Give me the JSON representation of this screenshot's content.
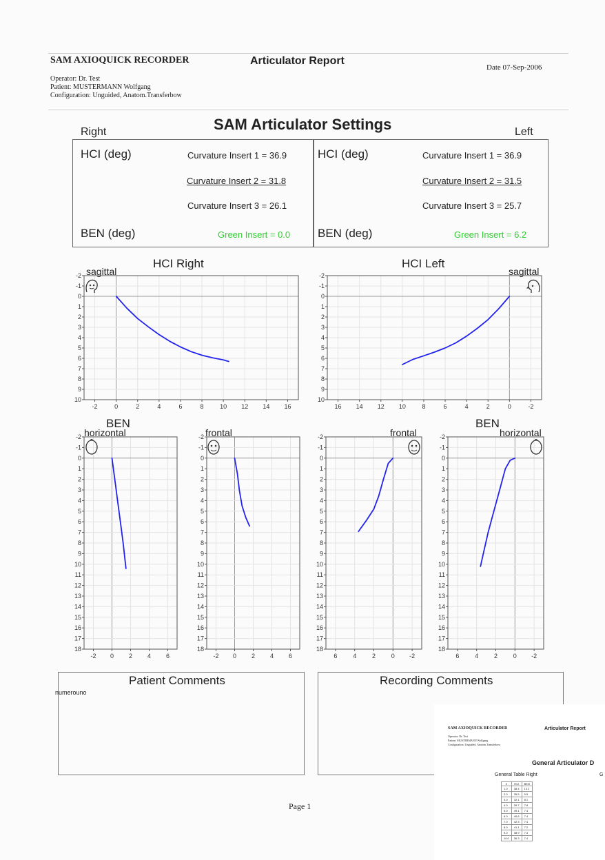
{
  "header": {
    "app_title": "SAM AXIOQUICK RECORDER",
    "report_title": "Articulator Report",
    "date": "Date 07-Sep-2006",
    "operator": "Operator: Dr. Test",
    "patient": "Patient: MUSTERMANN Wolfgang",
    "configuration": "Configuration: Unguided, Anatom.Transferbow"
  },
  "settings": {
    "title": "SAM Articulator Settings",
    "right_label": "Right",
    "left_label": "Left",
    "hci_label": "HCI (deg)",
    "ben_label": "BEN (deg)",
    "right": {
      "ci1": "Curvature Insert 1 = 36.9",
      "ci2": "Curvature Insert 2 = 31.8",
      "ci3": "Curvature Insert 3 = 26.1",
      "green": "Green Insert = 0.0"
    },
    "left": {
      "ci1": "Curvature Insert 1 = 36.9",
      "ci2": "Curvature Insert 2 = 31.5",
      "ci3": "Curvature Insert 3 = 25.7",
      "green": "Green Insert = 6.2"
    },
    "green_color": "#33cc33"
  },
  "chart_data": [
    {
      "id": "hci-right",
      "type": "line",
      "title": "HCI Right",
      "view_label": "sagittal",
      "xlim": [
        -3,
        17
      ],
      "ylim": [
        -2,
        10
      ],
      "x_ticks": [
        -2,
        0,
        2,
        4,
        6,
        8,
        10,
        12,
        14,
        16
      ],
      "y_ticks": [
        -2,
        -1,
        0,
        1,
        2,
        3,
        4,
        5,
        6,
        7,
        8,
        9,
        10
      ],
      "series": [
        {
          "x": [
            0,
            1,
            2,
            3,
            4,
            5,
            6,
            7,
            8,
            9,
            10,
            10.5
          ],
          "y": [
            0,
            1.15,
            2.15,
            2.95,
            3.7,
            4.35,
            4.9,
            5.35,
            5.7,
            5.95,
            6.15,
            6.3
          ],
          "color": "#2222ee"
        }
      ]
    },
    {
      "id": "hci-left",
      "type": "line",
      "title": "HCI Left",
      "view_label": "sagittal",
      "xlim": [
        17,
        -3
      ],
      "ylim": [
        -2,
        10
      ],
      "x_ticks": [
        16,
        14,
        12,
        10,
        8,
        6,
        4,
        2,
        0,
        -2
      ],
      "y_ticks": [
        -2,
        -1,
        0,
        1,
        2,
        3,
        4,
        5,
        6,
        7,
        8,
        9,
        10
      ],
      "series": [
        {
          "x": [
            0,
            1,
            2,
            3,
            4,
            5,
            6,
            7,
            8,
            9,
            10
          ],
          "y": [
            0,
            1.2,
            2.25,
            3.1,
            3.85,
            4.5,
            5.0,
            5.4,
            5.75,
            6.1,
            6.6
          ],
          "color": "#2222ee"
        }
      ]
    },
    {
      "id": "ben-right-horizontal",
      "type": "line",
      "title": "BEN",
      "view_label": "horizontal",
      "xlim": [
        -3,
        7
      ],
      "ylim": [
        -2,
        18
      ],
      "x_ticks": [
        -2,
        0,
        2,
        4,
        6
      ],
      "y_ticks": [
        -2,
        -1,
        0,
        1,
        2,
        3,
        4,
        5,
        6,
        7,
        8,
        9,
        10,
        11,
        12,
        13,
        14,
        15,
        16,
        17,
        18
      ],
      "series": [
        {
          "x": [
            0,
            0.3,
            0.6,
            0.9,
            1.2,
            1.5
          ],
          "y": [
            0,
            2,
            4,
            6,
            8,
            10.4
          ],
          "color": "#2222ee"
        }
      ]
    },
    {
      "id": "frontal-right",
      "type": "line",
      "title": "",
      "view_label": "frontal",
      "xlim": [
        -3,
        7
      ],
      "ylim": [
        -2,
        18
      ],
      "x_ticks": [
        -2,
        0,
        2,
        4,
        6
      ],
      "y_ticks": [
        -2,
        -1,
        0,
        1,
        2,
        3,
        4,
        5,
        6,
        7,
        8,
        9,
        10,
        11,
        12,
        13,
        14,
        15,
        16,
        17,
        18
      ],
      "series": [
        {
          "x": [
            0,
            0.3,
            0.5,
            0.8,
            1.2,
            1.6
          ],
          "y": [
            0,
            1.5,
            3,
            4.5,
            5.6,
            6.4
          ],
          "color": "#2222ee"
        }
      ]
    },
    {
      "id": "frontal-left",
      "type": "line",
      "title": "",
      "view_label": "frontal",
      "xlim": [
        7,
        -3
      ],
      "ylim": [
        -2,
        18
      ],
      "x_ticks": [
        6,
        4,
        2,
        0,
        -2
      ],
      "y_ticks": [
        -2,
        -1,
        0,
        1,
        2,
        3,
        4,
        5,
        6,
        7,
        8,
        9,
        10,
        11,
        12,
        13,
        14,
        15,
        16,
        17,
        18
      ],
      "series": [
        {
          "x": [
            0,
            0.5,
            1.0,
            1.5,
            2.0,
            2.8,
            3.6
          ],
          "y": [
            0,
            0.5,
            2,
            3.6,
            4.8,
            5.9,
            6.9
          ],
          "color": "#2222ee"
        }
      ]
    },
    {
      "id": "ben-left-horizontal",
      "type": "line",
      "title": "BEN",
      "view_label": "horizontal",
      "xlim": [
        7,
        -3
      ],
      "ylim": [
        -2,
        18
      ],
      "x_ticks": [
        6,
        4,
        2,
        0,
        -2
      ],
      "y_ticks": [
        -2,
        -1,
        0,
        1,
        2,
        3,
        4,
        5,
        6,
        7,
        8,
        9,
        10,
        11,
        12,
        13,
        14,
        15,
        16,
        17,
        18
      ],
      "series": [
        {
          "x": [
            0,
            0.5,
            1.0,
            1.6,
            2.2,
            2.8,
            3.3,
            3.6
          ],
          "y": [
            0,
            0.2,
            1,
            3,
            5,
            7,
            9,
            10.2
          ],
          "color": "#2222ee"
        }
      ]
    }
  ],
  "comments": {
    "patient_title": "Patient Comments",
    "patient_text": "numerouno",
    "recording_title": "Recording Comments"
  },
  "footer": {
    "page": "Page 1"
  },
  "thumbnail": {
    "app_title": "SAM AXIOQUICK RECORDER",
    "report_title": "Articulator Report",
    "lines": [
      "Operator: Dr. Test",
      "Patient: MUSTERMANN Wolfgang",
      "Configuration: Unguided, Anatom.Transferbow"
    ],
    "section_title": "General Articulator D",
    "table_title": "General Table Right",
    "table_right_marker": "G",
    "columns": [
      "0",
      "HCI",
      "BEN"
    ],
    "rows": [
      [
        "1.0",
        "38.4",
        "13.2"
      ],
      [
        "2.0",
        "35.5",
        "9.5"
      ],
      [
        "3.0",
        "32.1",
        "8.1"
      ],
      [
        "4.0",
        "39.7",
        "7.8"
      ],
      [
        "5.0",
        "49.1",
        "7.4"
      ],
      [
        "6.0",
        "40.6",
        "7.4"
      ],
      [
        "7.0",
        "42.3",
        "7.4"
      ],
      [
        "8.0",
        "41.1",
        "7.2"
      ],
      [
        "9.0",
        "38.9",
        "7.3"
      ],
      [
        "10.0",
        "36.3",
        "7.4"
      ]
    ]
  }
}
